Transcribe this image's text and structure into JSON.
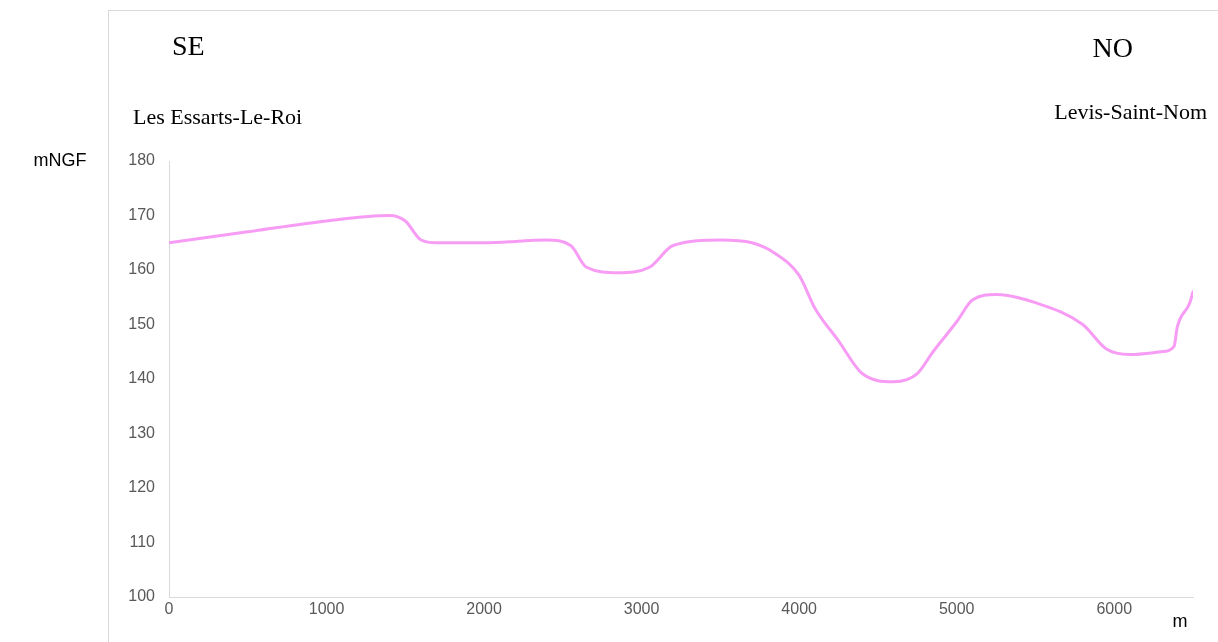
{
  "chart_data": {
    "type": "line",
    "xlabel": "m",
    "ylabel": "mNGF",
    "annotations": [
      "SE",
      "NO",
      "Les Essarts-Le-Roi",
      "Levis-Saint-Nom"
    ],
    "x": [
      0,
      500,
      1000,
      1400,
      1500,
      1600,
      1700,
      2000,
      2400,
      2550,
      2650,
      2850,
      3050,
      3200,
      3500,
      3700,
      3850,
      4000,
      4100,
      4250,
      4400,
      4600,
      4750,
      4850,
      5000,
      5100,
      5250,
      5500,
      5800,
      5950,
      6100,
      6300,
      6380,
      6400,
      6480,
      6500
    ],
    "series": [
      {
        "color": "#f79cf4",
        "values": [
          165,
          167,
          169,
          170,
          169,
          165.5,
          165,
          165,
          165.5,
          164.5,
          160.5,
          159.5,
          160.5,
          164.5,
          165.5,
          165,
          163,
          159,
          153,
          147,
          141,
          139.5,
          141,
          145,
          150.5,
          154.5,
          155.5,
          154,
          150,
          145.5,
          144.5,
          145,
          146,
          149.5,
          154,
          156
        ]
      }
    ],
    "xlim": [
      0,
      6500
    ],
    "xticks": [
      0,
      1000,
      2000,
      3000,
      4000,
      5000,
      6000
    ],
    "ylim": [
      100,
      180
    ],
    "yticks": [
      100,
      110,
      120,
      130,
      140,
      150,
      160,
      170,
      180
    ],
    "grid": false,
    "legend": false,
    "marker": "none",
    "line_style": "solid"
  }
}
